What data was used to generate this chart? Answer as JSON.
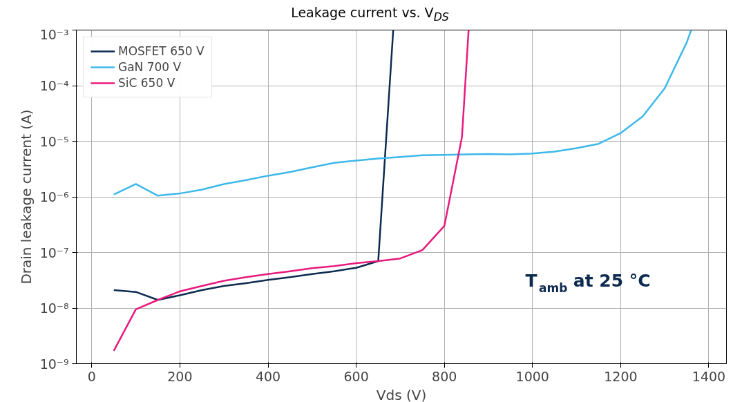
{
  "chart_data": {
    "type": "line",
    "title": "Leakage current vs. V$_{DS}$",
    "xlabel": "Vds (V)",
    "ylabel": "Drain leakage current (A)",
    "log": "y",
    "grid": true,
    "legend": "top left",
    "xlim": [
      -35,
      1440
    ],
    "xticks": [
      0,
      200,
      400,
      600,
      800,
      1000,
      1200,
      1400
    ],
    "ylim": [
      1e-09,
      0.001
    ],
    "yticks": [
      {
        "value": 1e-09,
        "label": "10⁻⁹"
      },
      {
        "value": 1e-08,
        "label": "10⁻⁸"
      },
      {
        "value": 1e-07,
        "label": "10⁻⁷"
      },
      {
        "value": 1e-06,
        "label": "10⁻⁶"
      },
      {
        "value": 1e-05,
        "label": "10⁻⁵"
      },
      {
        "value": 0.0001,
        "label": "10⁻⁴"
      },
      {
        "value": 0.001,
        "label": "10⁻³"
      }
    ],
    "annotations": [
      "T$_{amb}$ at 25 °C"
    ],
    "series": [
      {
        "name": "MOSFET 650 V",
        "color": "#0d2a4f",
        "x": [
          50,
          100,
          150,
          200,
          250,
          300,
          350,
          400,
          450,
          500,
          550,
          600,
          650,
          684
        ],
        "values": [
          2.1e-08,
          1.95e-08,
          1.4e-08,
          1.7e-08,
          2.1e-08,
          2.5e-08,
          2.8e-08,
          3.2e-08,
          3.6e-08,
          4.1e-08,
          4.6e-08,
          5.3e-08,
          7e-08,
          0.001
        ]
      },
      {
        "name": "GaN 700 V",
        "color": "#3db8ea",
        "x": [
          50,
          100,
          150,
          200,
          250,
          300,
          350,
          400,
          450,
          500,
          550,
          600,
          650,
          700,
          750,
          800,
          850,
          900,
          950,
          1000,
          1050,
          1100,
          1150,
          1200,
          1250,
          1300,
          1350,
          1360
        ],
        "values": [
          1.1e-06,
          1.7e-06,
          1.05e-06,
          1.15e-06,
          1.35e-06,
          1.7e-06,
          2e-06,
          2.4e-06,
          2.8e-06,
          3.4e-06,
          4.1e-06,
          4.5e-06,
          4.9e-06,
          5.2e-06,
          5.6e-06,
          5.7e-06,
          5.8e-06,
          5.9e-06,
          5.8e-06,
          6e-06,
          6.5e-06,
          7.5e-06,
          9e-06,
          1.4e-05,
          2.8e-05,
          9e-05,
          0.0006,
          0.001
        ]
      },
      {
        "name": "SiC 650 V",
        "color": "#e8197d",
        "x": [
          50,
          100,
          150,
          200,
          250,
          300,
          350,
          400,
          450,
          500,
          550,
          600,
          650,
          700,
          750,
          800,
          840,
          855
        ],
        "values": [
          1.7e-09,
          9.5e-09,
          1.4e-08,
          2e-08,
          2.5e-08,
          3.1e-08,
          3.6e-08,
          4.1e-08,
          4.6e-08,
          5.2e-08,
          5.7e-08,
          6.4e-08,
          7e-08,
          7.8e-08,
          1.1e-07,
          3e-07,
          1.2e-05,
          0.001
        ]
      }
    ]
  }
}
